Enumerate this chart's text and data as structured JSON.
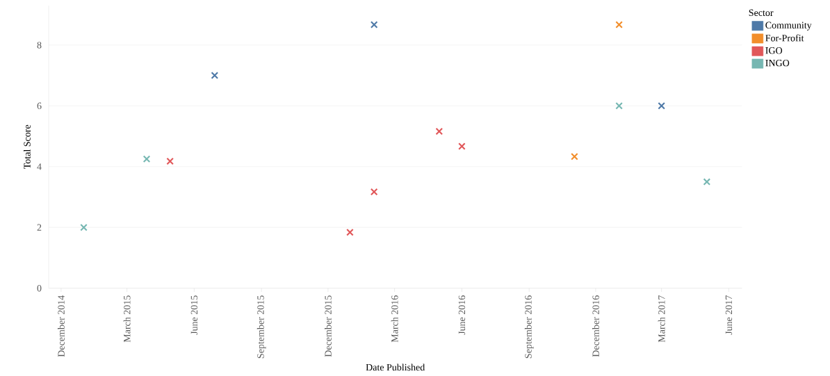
{
  "chart_data": {
    "type": "scatter",
    "xlabel": "Date Published",
    "ylabel": "Total Score",
    "legend_title": "Sector",
    "legend": "right",
    "marker": "cross",
    "grid": "y",
    "xlim": [
      "2014-11-14",
      "2017-06-19"
    ],
    "ylim": [
      0,
      9.3
    ],
    "xticks": [
      {
        "value": "2014-12-01",
        "label": "December 2014"
      },
      {
        "value": "2015-03-01",
        "label": "March 2015"
      },
      {
        "value": "2015-06-01",
        "label": "June 2015"
      },
      {
        "value": "2015-09-01",
        "label": "September 2015"
      },
      {
        "value": "2015-12-01",
        "label": "December 2015"
      },
      {
        "value": "2016-03-01",
        "label": "March 2016"
      },
      {
        "value": "2016-06-01",
        "label": "June 2016"
      },
      {
        "value": "2016-09-01",
        "label": "September 2016"
      },
      {
        "value": "2016-12-01",
        "label": "December 2016"
      },
      {
        "value": "2017-03-01",
        "label": "March 2017"
      },
      {
        "value": "2017-06-01",
        "label": "June 2017"
      }
    ],
    "yticks": [
      0,
      2,
      4,
      6,
      8
    ],
    "series": [
      {
        "name": "Community",
        "color": "#4e79a7",
        "x": [
          "2015-06-29",
          "2016-02-02",
          "2017-03-01"
        ],
        "values": [
          7,
          8.67,
          6
        ]
      },
      {
        "name": "For-Profit",
        "color": "#f28e2b",
        "x": [
          "2016-11-02",
          "2017-01-02"
        ],
        "values": [
          4.33,
          8.67
        ]
      },
      {
        "name": "IGO",
        "color": "#e15759",
        "x": [
          "2015-04-29",
          "2015-12-31",
          "2016-02-02",
          "2016-05-01",
          "2016-06-01"
        ],
        "values": [
          4.18,
          1.84,
          3.17,
          5.16,
          4.67
        ]
      },
      {
        "name": "INGO",
        "color": "#76b7b2",
        "x": [
          "2015-01-01",
          "2015-03-28",
          "2017-01-02",
          "2017-05-02"
        ],
        "values": [
          2,
          4.25,
          6,
          3.5
        ]
      }
    ]
  }
}
